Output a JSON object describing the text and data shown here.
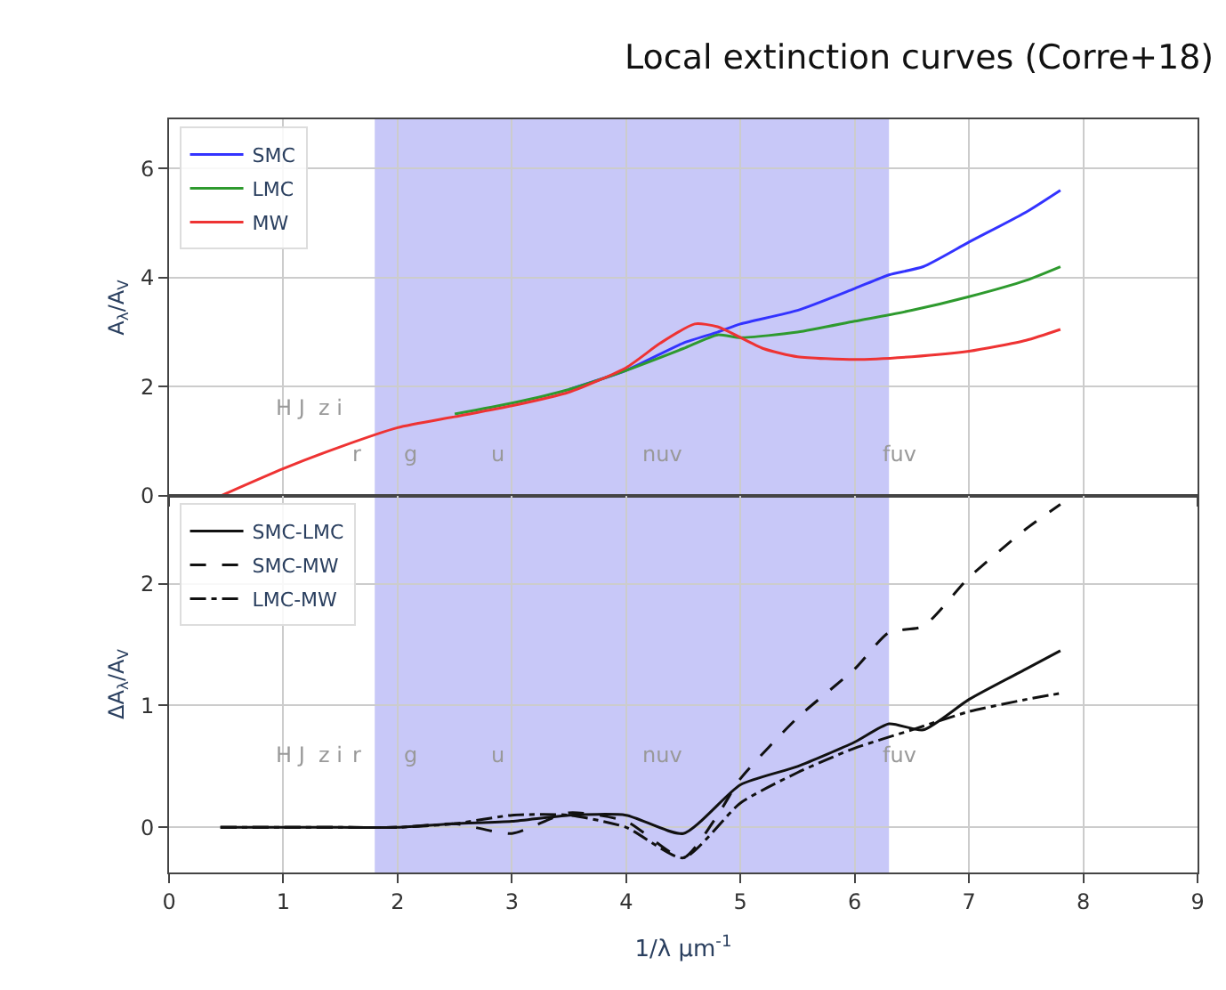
{
  "chart_data": [
    {
      "type": "line",
      "title": "Local extinction curves (Corre+18)",
      "ylabel": "A$_{λ}$/A$_{V}$",
      "xlim": [
        0,
        9
      ],
      "xticks": [
        0,
        1,
        2,
        3,
        4,
        5,
        6,
        7,
        8,
        9
      ],
      "ylim": [
        0,
        6.9
      ],
      "yticks": [
        0,
        2,
        4,
        6
      ],
      "tick_labels": "y",
      "grid": true,
      "legend": "top left",
      "bands": [
        {
          "axis": "x",
          "from": 1.8,
          "to": 6.3,
          "color": "#c8c8f8"
        }
      ],
      "annotations": [
        "H J  z i",
        "r",
        "g",
        "u",
        "nuv",
        "fuv"
      ],
      "series": [
        {
          "name": "SMC",
          "color": "#3333ff",
          "line_style": "solid",
          "x": [
            3.5,
            4,
            4.5,
            4.8,
            5,
            5.5,
            6,
            6.3,
            6.6,
            7,
            7.5,
            7.8
          ],
          "values": [
            1.95,
            2.3,
            2.8,
            3.0,
            3.15,
            3.4,
            3.8,
            4.05,
            4.2,
            4.65,
            5.2,
            5.6
          ]
        },
        {
          "name": "LMC",
          "color": "#2e9a2e",
          "line_style": "solid",
          "x": [
            2.5,
            3,
            3.5,
            4,
            4.5,
            4.8,
            5,
            5.5,
            6,
            6.5,
            7,
            7.5,
            7.8
          ],
          "values": [
            1.5,
            1.7,
            1.95,
            2.3,
            2.7,
            2.95,
            2.9,
            3.0,
            3.2,
            3.4,
            3.65,
            3.95,
            4.2
          ]
        },
        {
          "name": "MW",
          "color": "#ee3333",
          "line_style": "solid",
          "x": [
            0.45,
            1,
            1.5,
            2,
            2.5,
            3,
            3.5,
            4,
            4.3,
            4.6,
            4.8,
            5.2,
            5.5,
            6,
            6.5,
            7,
            7.5,
            7.8
          ],
          "values": [
            0,
            0.5,
            0.9,
            1.25,
            1.45,
            1.65,
            1.9,
            2.35,
            2.8,
            3.15,
            3.1,
            2.7,
            2.55,
            2.5,
            2.55,
            2.65,
            2.85,
            3.05
          ]
        }
      ]
    },
    {
      "type": "line",
      "ylabel": "ΔA$_{λ}$/A$_{V}$",
      "xlabel": "1/λ μm$^{-1}$",
      "xlim": [
        0,
        9
      ],
      "xticks": [
        0,
        1,
        2,
        3,
        4,
        5,
        6,
        7,
        8,
        9
      ],
      "ylim": [
        -0.37,
        2.72
      ],
      "yticks": [
        0,
        1,
        2
      ],
      "grid": true,
      "legend": "top left",
      "bands": [
        {
          "axis": "x",
          "from": 1.8,
          "to": 6.3,
          "color": "#c8c8f8"
        }
      ],
      "annotations": [
        "H J  z i",
        "r",
        "g",
        "u",
        "nuv",
        "fuv"
      ],
      "series": [
        {
          "name": "SMC-LMC",
          "color": "#111111",
          "line_style": "solid",
          "x": [
            0.45,
            1,
            1.5,
            2,
            2.5,
            3,
            3.5,
            4,
            4.5,
            5,
            5.5,
            6,
            6.3,
            6.6,
            7,
            7.5,
            7.8
          ],
          "values": [
            0,
            0,
            0,
            0,
            0.03,
            0.05,
            0.1,
            0.1,
            -0.05,
            0.35,
            0.5,
            0.7,
            0.85,
            0.8,
            1.05,
            1.3,
            1.45
          ]
        },
        {
          "name": "SMC-MW",
          "color": "#111111",
          "line_style": "dashed",
          "x": [
            0.45,
            1,
            1.5,
            2,
            2.5,
            3,
            3.5,
            4,
            4.5,
            4.8,
            5,
            5.5,
            6,
            6.3,
            6.6,
            7,
            7.5,
            7.8
          ],
          "values": [
            0,
            0,
            0,
            0,
            0.03,
            -0.05,
            0.12,
            0.05,
            -0.25,
            0.1,
            0.4,
            0.9,
            1.3,
            1.6,
            1.65,
            2.05,
            2.45,
            2.65
          ]
        },
        {
          "name": "LMC-MW",
          "color": "#111111",
          "line_style": "dashdot",
          "x": [
            0.45,
            1,
            1.5,
            2,
            2.5,
            3,
            3.5,
            4,
            4.5,
            5,
            5.5,
            6,
            6.5,
            7,
            7.5,
            7.8
          ],
          "values": [
            0,
            0,
            0,
            0,
            0.03,
            0.1,
            0.1,
            0,
            -0.25,
            0.2,
            0.45,
            0.65,
            0.8,
            0.95,
            1.05,
            1.1
          ]
        }
      ]
    }
  ]
}
